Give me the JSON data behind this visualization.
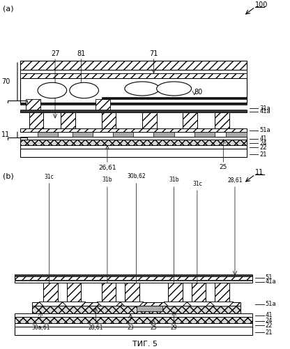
{
  "title": "ΤИГ. 5",
  "fig_width": 4.16,
  "fig_height": 5.0,
  "dpi": 100,
  "bg_color": "#ffffff",
  "panel_a": {
    "label": "(a)",
    "ref_100": "100",
    "layers_right": [
      "31a",
      "41a",
      "51a",
      "41",
      "24",
      "22",
      "21"
    ],
    "label_70": "70",
    "label_11": "11",
    "label_80": "80",
    "top_labels": [
      "27",
      "81",
      "71"
    ],
    "bot_labels": [
      "26,61",
      "25"
    ]
  },
  "panel_b": {
    "label": "(b)",
    "ref_11": "11",
    "layers_right": [
      "51",
      "41a",
      "51a",
      "41",
      "24",
      "22",
      "21"
    ],
    "top_labels": [
      "31c",
      "31b",
      "30b,62",
      "31b",
      "31c",
      "28,61"
    ],
    "bot_labels": [
      "30a,61",
      "28,61",
      "23",
      "25",
      "29"
    ]
  }
}
